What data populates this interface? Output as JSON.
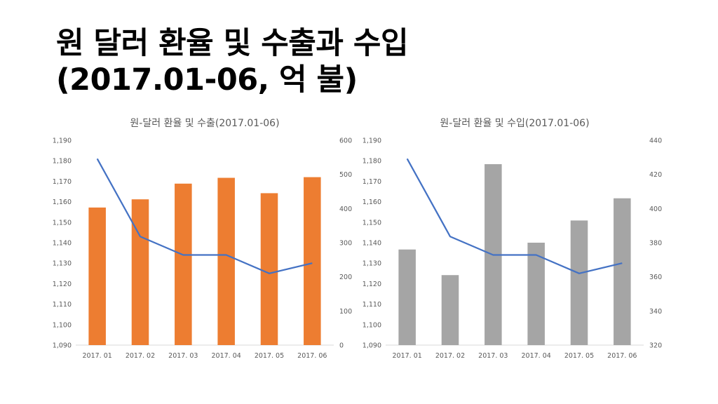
{
  "slide": {
    "title_line1": "원 달러 환율 및 수출과 수입",
    "title_line2": "(2017.01-06, 억 불)"
  },
  "colors": {
    "export_bar": "#ED7D31",
    "import_bar": "#A5A5A5",
    "rate_line": "#4472C4",
    "axis_text": "#595959",
    "baseline": "#D9D9D9"
  },
  "chart_data": [
    {
      "type": "bar",
      "title": "원-달러 환율 및 수출(2017.01-06)",
      "categories": [
        "2017. 01",
        "2017. 02",
        "2017. 03",
        "2017. 04",
        "2017. 05",
        "2017. 06"
      ],
      "series": [
        {
          "name": "수출",
          "kind": "bar",
          "axis": "right",
          "values": [
            403,
            427,
            473,
            490,
            445,
            492
          ]
        },
        {
          "name": "원 달러 환율",
          "kind": "line",
          "axis": "left",
          "values": [
            1181,
            1143,
            1134,
            1134,
            1125,
            1130
          ]
        }
      ],
      "y_left": {
        "min": 1090,
        "max": 1190,
        "step": 10,
        "ticks": [
          "1,090",
          "1,100",
          "1,110",
          "1,120",
          "1,130",
          "1,140",
          "1,150",
          "1,160",
          "1,170",
          "1,180",
          "1,190"
        ]
      },
      "y_right": {
        "min": 0,
        "max": 600,
        "step": 100,
        "ticks": [
          "0",
          "100",
          "200",
          "300",
          "400",
          "500",
          "600"
        ]
      }
    },
    {
      "type": "bar",
      "title": "원-달러 환율 및 수입(2017.01-06)",
      "categories": [
        "2017. 01",
        "2017. 02",
        "2017. 03",
        "2017. 04",
        "2017. 05",
        "2017. 06"
      ],
      "series": [
        {
          "name": "수입",
          "kind": "bar",
          "axis": "right",
          "values": [
            376,
            361,
            426,
            380,
            393,
            406
          ]
        },
        {
          "name": "원 달러 환율",
          "kind": "line",
          "axis": "left",
          "values": [
            1181,
            1143,
            1134,
            1134,
            1125,
            1130
          ]
        }
      ],
      "y_left": {
        "min": 1090,
        "max": 1190,
        "step": 10,
        "ticks": [
          "1,090",
          "1,100",
          "1,110",
          "1,120",
          "1,130",
          "1,140",
          "1,150",
          "1,160",
          "1,170",
          "1,180",
          "1,190"
        ]
      },
      "y_right": {
        "min": 320,
        "max": 440,
        "step": 20,
        "ticks": [
          "320",
          "340",
          "360",
          "380",
          "400",
          "420",
          "440"
        ]
      }
    }
  ]
}
